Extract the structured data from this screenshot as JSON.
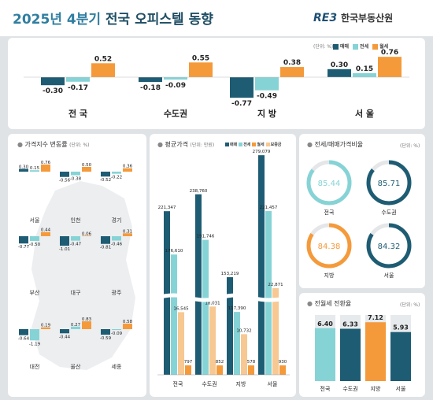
{
  "header": {
    "title_prefix": "2025년 4분기",
    "title_rest": " 전국 오피스텔 동향",
    "logo_mark": "RE3",
    "logo_text": "한국부동산원"
  },
  "legend": {
    "sale": "매매",
    "jeonse": "전세",
    "monthly": "월세",
    "deposit": "보증금",
    "unit_pct": "(단위: %)",
    "unit_price": "(단위: 만원)"
  },
  "colors": {
    "sale": "#1e5c73",
    "jeonse": "#86d3d6",
    "monthly": "#f59a3a",
    "deposit": "#f7c892"
  },
  "chart_data": [
    {
      "type": "bar",
      "name_key": "top_change",
      "unit": "(단위: %)",
      "categories": [
        "전 국",
        "수도권",
        "지 방",
        "서 울"
      ],
      "series": [
        {
          "name": "매매",
          "values": [
            -0.3,
            -0.18,
            -0.77,
            0.3
          ]
        },
        {
          "name": "전세",
          "values": [
            -0.17,
            -0.09,
            -0.49,
            0.15
          ]
        },
        {
          "name": "월세",
          "values": [
            0.52,
            0.55,
            0.38,
            0.76
          ]
        }
      ]
    },
    {
      "type": "bar",
      "title": "가격지수 변동률",
      "unit": "(단위: %)",
      "categories": [
        "서울",
        "인천",
        "경기",
        "부산",
        "대구",
        "광주",
        "대전",
        "울산",
        "세종"
      ],
      "series": [
        {
          "name": "매매",
          "values": [
            0.3,
            -0.56,
            -0.52,
            -0.77,
            -1.01,
            -0.81,
            -0.64,
            -0.44,
            -0.59
          ]
        },
        {
          "name": "전세",
          "values": [
            0.15,
            -0.38,
            -0.22,
            -0.5,
            -0.47,
            -0.46,
            -1.19,
            0.27,
            -0.09
          ]
        },
        {
          "name": "월세",
          "values": [
            0.76,
            0.5,
            0.36,
            0.44,
            0.06,
            0.31,
            0.19,
            0.83,
            0.58
          ]
        }
      ]
    },
    {
      "type": "bar",
      "title": "평균가격",
      "unit": "(단위: 만원)",
      "categories": [
        "전국",
        "수도권",
        "지방",
        "서울"
      ],
      "series": [
        {
          "name": "매매",
          "values": [
            221347,
            238760,
            153219,
            279079
          ]
        },
        {
          "name": "전세",
          "values": [
            176610,
            191746,
            117390,
            221457
          ]
        },
        {
          "name": "보증금",
          "values": [
            16545,
            18031,
            10732,
            22871
          ]
        },
        {
          "name": "월세",
          "values": [
            797,
            852,
            578,
            930
          ]
        }
      ]
    },
    {
      "type": "pie",
      "title": "전세/매매가격비율",
      "unit": "(단위: %)",
      "categories": [
        "전국",
        "수도권",
        "지방",
        "서울"
      ],
      "values": [
        85.44,
        85.71,
        84.38,
        84.32
      ]
    },
    {
      "type": "bar",
      "title": "전월세 전환율",
      "unit": "(단위: %)",
      "categories": [
        "전국",
        "수도권",
        "지방",
        "서울"
      ],
      "values": [
        6.4,
        6.33,
        7.12,
        5.93
      ]
    }
  ]
}
